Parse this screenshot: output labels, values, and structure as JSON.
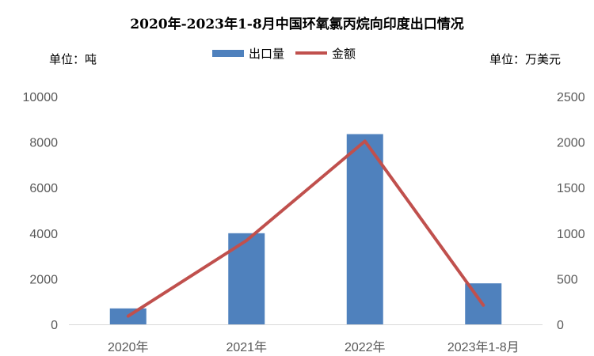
{
  "title": "2020年-2023年1-8月中国环氧氯丙烷向印度出口情况",
  "units": {
    "left": "单位：吨",
    "right": "单位：万美元"
  },
  "colors": {
    "bar": "#4f81bd",
    "line": "#c0504d",
    "axis": "#d9d9d9"
  },
  "chart_data": {
    "type": "bar",
    "title": "2020年-2023年1-8月中国环氧氯丙烷向印度出口情况",
    "categories": [
      "2020年",
      "2021年",
      "2022年",
      "2023年1-8月"
    ],
    "series": [
      {
        "name": "出口量",
        "type": "bar",
        "axis": "left",
        "values": [
          700,
          4000,
          8350,
          1800
        ]
      },
      {
        "name": "金额",
        "type": "line",
        "axis": "right",
        "values": [
          90,
          920,
          2010,
          210
        ]
      }
    ],
    "y_left": {
      "ylim": [
        0,
        10000
      ],
      "ticks": [
        "0",
        "2000",
        "4000",
        "6000",
        "8000",
        "10000"
      ]
    },
    "y_right": {
      "ylim": [
        0,
        2500
      ],
      "ticks": [
        "0",
        "500",
        "1000",
        "1500",
        "2000",
        "2500"
      ]
    },
    "legend_position": "top-center",
    "grid": false
  }
}
